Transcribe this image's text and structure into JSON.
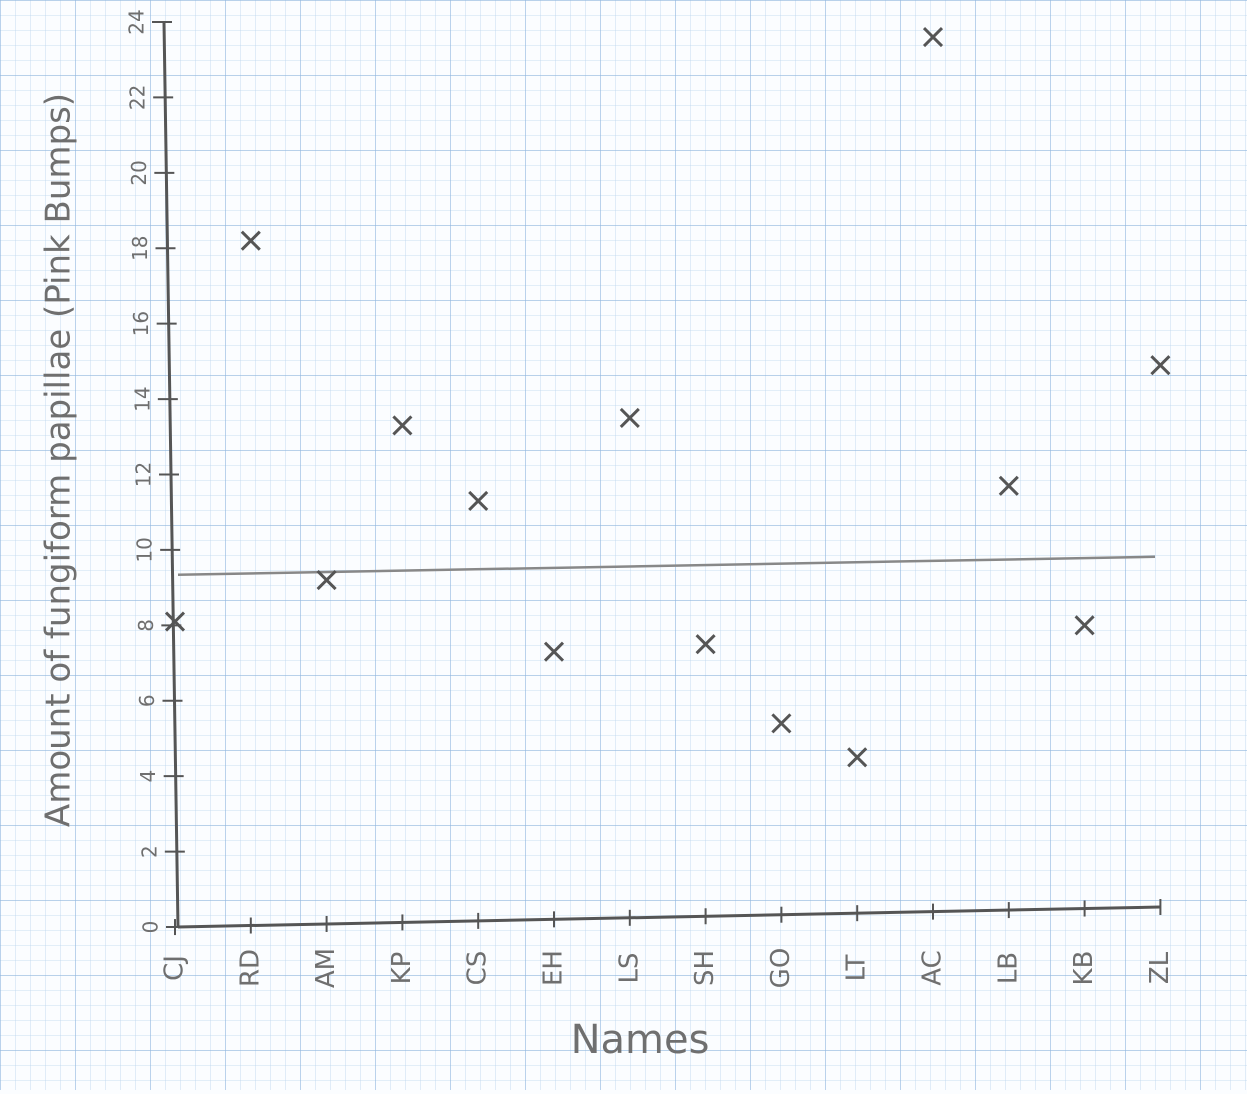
{
  "chart_data": {
    "type": "scatter",
    "y_label": "Amount of fungiform papillae (Pink Bumps)",
    "x_label": "Names",
    "categories": [
      "CJ",
      "RD",
      "AM",
      "KP",
      "CS",
      "EH",
      "LS",
      "SH",
      "GO",
      "LT",
      "AC",
      "LB",
      "KB",
      "ZL"
    ],
    "values": [
      8.1,
      18.2,
      9.2,
      13.3,
      11.3,
      7.3,
      13.5,
      7.5,
      5.4,
      4.5,
      23.6,
      11.7,
      8.0,
      14.9
    ],
    "color": "#555555",
    "hline": 9.5,
    "ylim": [
      0,
      24
    ],
    "yticks": [
      0,
      2,
      4,
      6,
      8,
      10,
      12,
      14,
      16,
      18,
      20,
      22,
      24
    ]
  }
}
